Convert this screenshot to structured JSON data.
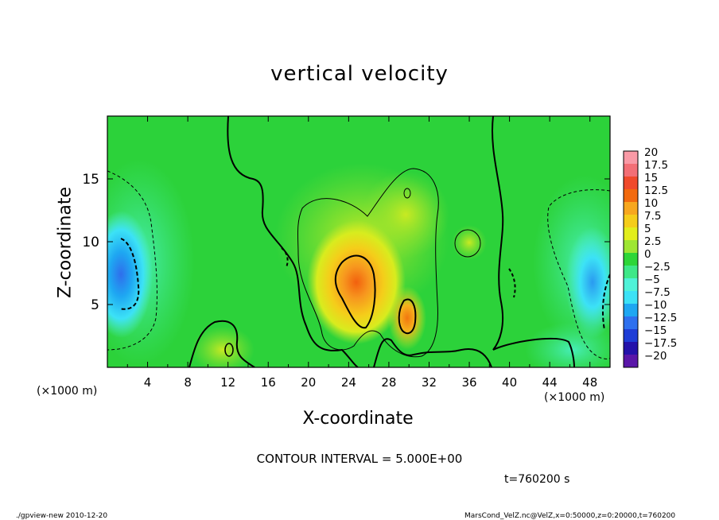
{
  "chart_data": {
    "type": "heatmap",
    "title": "vertical velocity",
    "xlabel": "X-coordinate",
    "ylabel": "Z-coordinate",
    "x_unit": "(×1000 m)",
    "xlim": [
      0,
      50
    ],
    "ylim": [
      0,
      20
    ],
    "x_ticks": [
      4,
      8,
      12,
      16,
      20,
      24,
      28,
      32,
      36,
      40,
      44,
      48
    ],
    "y_ticks": [
      5,
      10,
      15
    ],
    "colorbar": {
      "levels": [
        20,
        17.5,
        15,
        12.5,
        10,
        7.5,
        5,
        2.5,
        0,
        -2.5,
        -5,
        -7.5,
        -10,
        -12.5,
        -15,
        -17.5,
        -20
      ],
      "labels": [
        "20",
        "17.5",
        "15",
        "12.5",
        "10",
        "7.5",
        "5",
        "2.5",
        "0",
        "−2.5",
        "−5",
        "−7.5",
        "−10",
        "−12.5",
        "−15",
        "−17.5",
        "−20"
      ],
      "colors": [
        "#f99aa6",
        "#f36f76",
        "#f04a2c",
        "#f26a0e",
        "#f7a71e",
        "#f5cd1a",
        "#e2ee1c",
        "#9ee633",
        "#2ed638",
        "#3ee888",
        "#4ff2d8",
        "#3ce2f6",
        "#1ea7f2",
        "#2e70ee",
        "#1e3dd6",
        "#2412aa",
        "#5a16a8"
      ]
    },
    "contour_interval": "CONTOUR INTERVAL = 5.000E+00",
    "time": "t=760200 s",
    "features": [
      {
        "kind": "updraft_max",
        "x": 25,
        "z": 6.5,
        "w": 12
      },
      {
        "kind": "updraft",
        "x": 30,
        "z": 4,
        "w": 7
      },
      {
        "kind": "downdraft_min",
        "x": 1.5,
        "z": 8,
        "w": -11
      },
      {
        "kind": "downdraft",
        "x": 48,
        "z": 7,
        "w": -8
      }
    ]
  },
  "footer": {
    "left": "./gpview-new  2010-12-20",
    "right": "MarsCond_VelZ.nc@VelZ,x=0:50000,z=0:20000,t=760200"
  }
}
